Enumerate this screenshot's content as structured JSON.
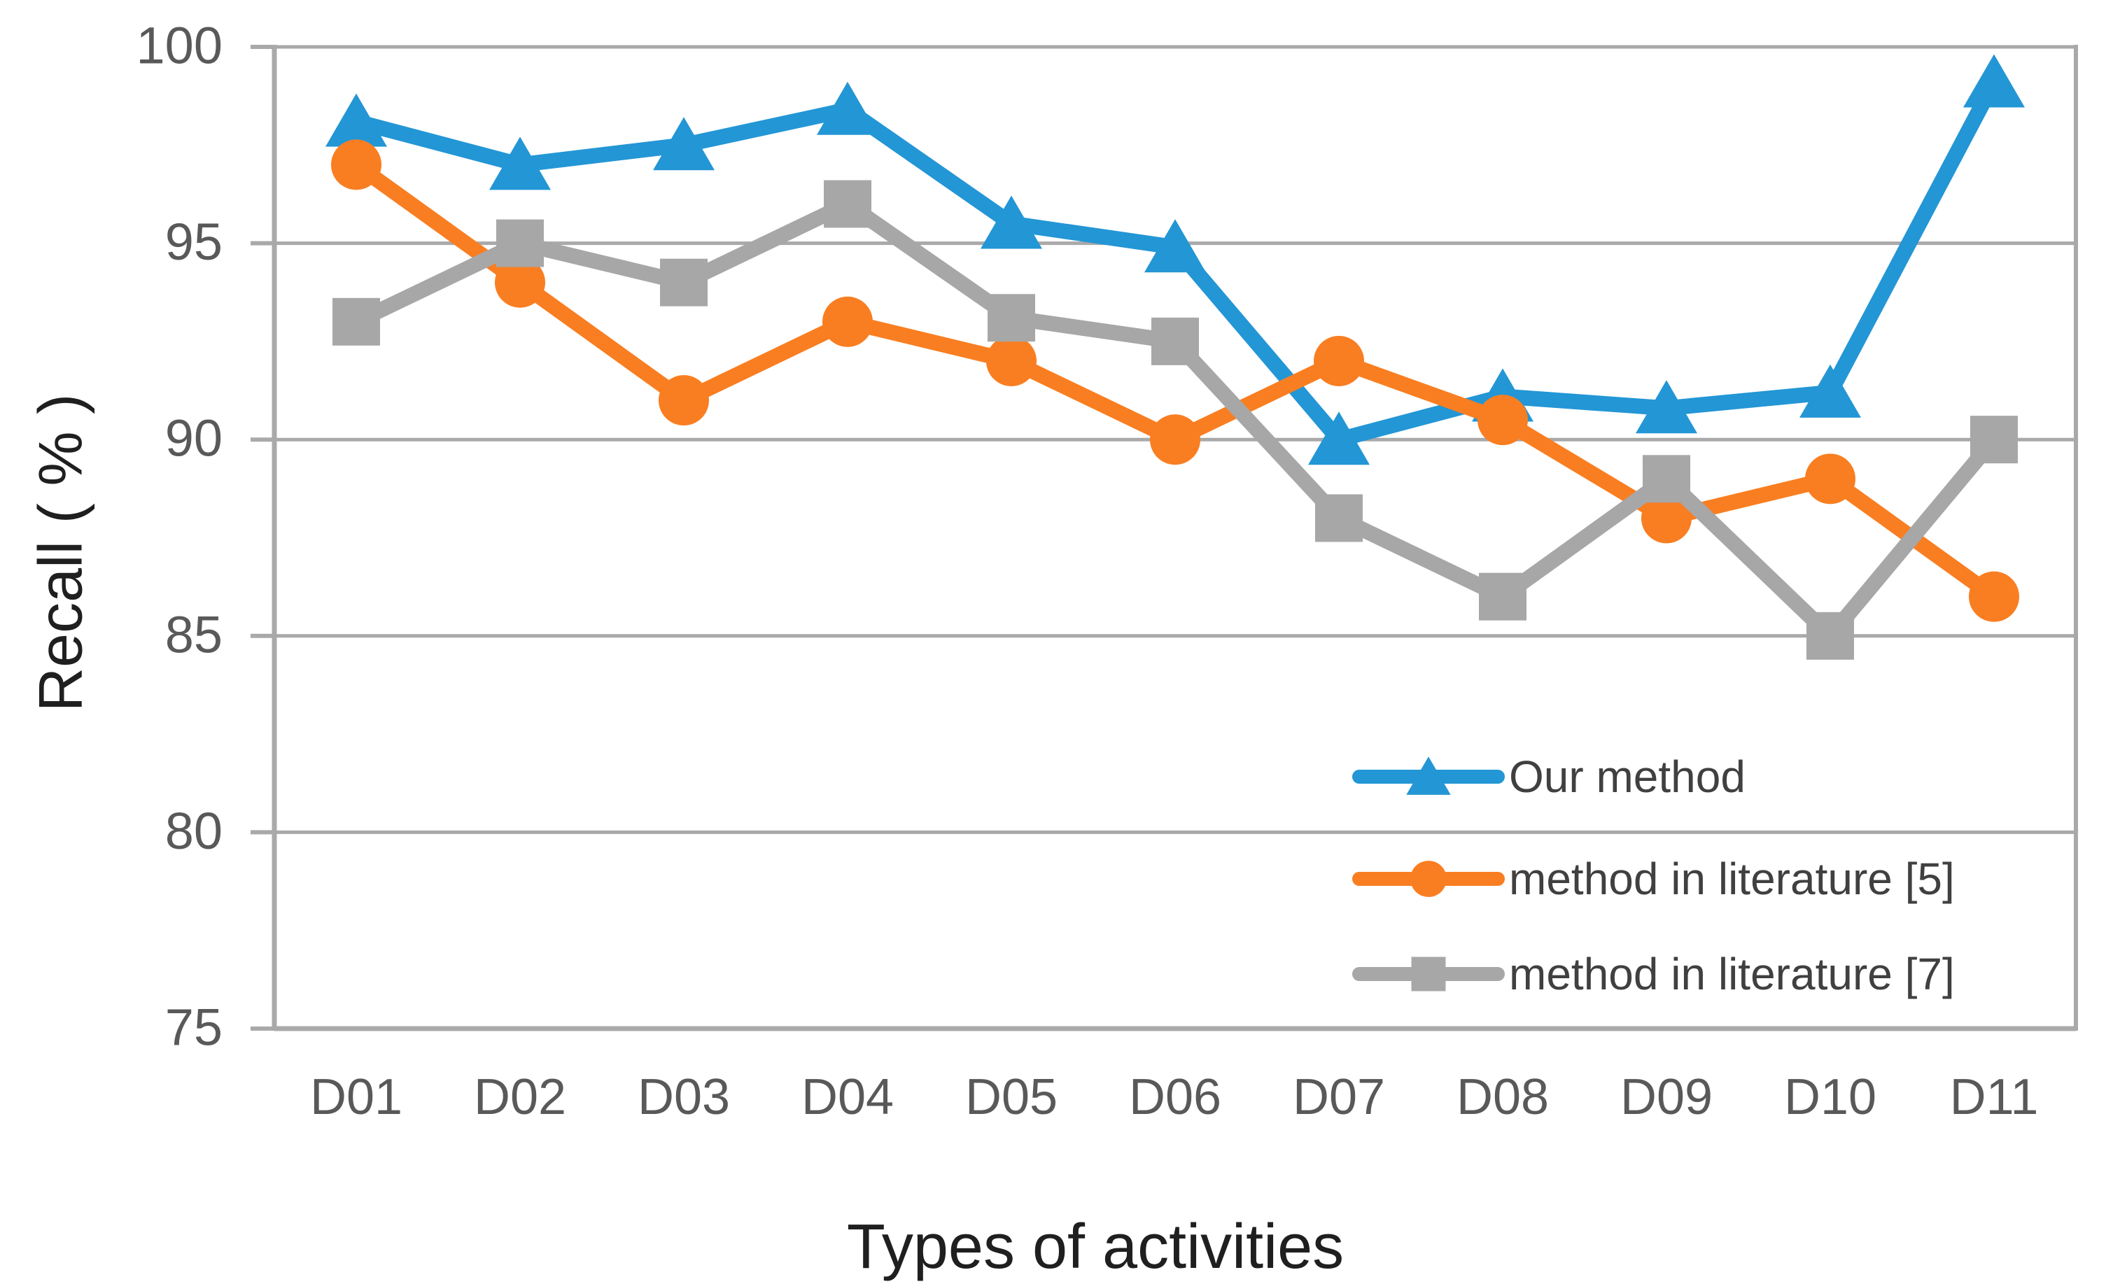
{
  "figure": {
    "background": "#FFFFFF"
  },
  "chart_data": {
    "type": "line",
    "title": "",
    "xlabel": "Types of activities",
    "ylabel": "Recall ( % )",
    "categories": [
      "D01",
      "D02",
      "D03",
      "D04",
      "D05",
      "D06",
      "D07",
      "D08",
      "D09",
      "D10",
      "D11"
    ],
    "series": [
      {
        "name": "Our method",
        "marker": "triangle",
        "color": "#2396D5",
        "values": [
          98.1,
          97.0,
          97.5,
          98.4,
          95.5,
          94.9,
          90.0,
          91.1,
          90.8,
          91.2,
          99.1
        ]
      },
      {
        "name": "method in literature [5]",
        "marker": "circle",
        "color": "#F97E21",
        "values": [
          97.0,
          94.0,
          91.0,
          93.0,
          92.0,
          90.0,
          92.0,
          90.5,
          88.0,
          89.0,
          86.0
        ]
      },
      {
        "name": "method in literature [7]",
        "marker": "square",
        "color": "#A7A7A7",
        "values": [
          93.0,
          95.0,
          94.0,
          96.0,
          93.1,
          92.5,
          88.0,
          86.0,
          89.0,
          85.0,
          90.0
        ]
      }
    ],
    "ylim": [
      75,
      100
    ],
    "yticks": [
      100,
      95,
      90,
      85,
      80,
      75
    ],
    "ytick_step": 5,
    "grid": true,
    "legend_position": "inside-bottom-right",
    "colors": {
      "gridline": "#A9A9A9",
      "axis": "#A9A9A9",
      "tick_label": "#595959",
      "x_label": "#595959",
      "legend_text": "#404040",
      "axis_title": "#1F1F1F",
      "background": "#FFFFFF"
    }
  }
}
